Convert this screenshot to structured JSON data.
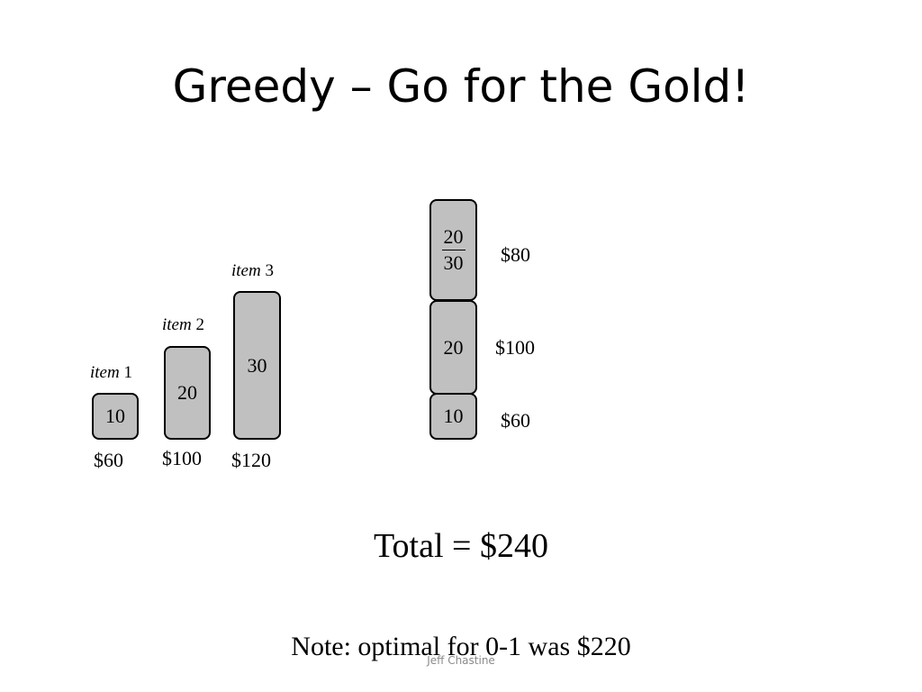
{
  "slide": {
    "title": "Greedy – Go for the Gold!",
    "total": "Total = $240",
    "note": "Note: optimal for 0-1 was $220",
    "footer": "Jeff Chastine"
  },
  "items": [
    {
      "label_word": "item",
      "label_num": "1",
      "weight": "10",
      "price": "$60"
    },
    {
      "label_word": "item",
      "label_num": "2",
      "weight": "20",
      "price": "$100"
    },
    {
      "label_word": "item",
      "label_num": "3",
      "weight": "30",
      "price": "$120"
    }
  ],
  "knapsack": {
    "top": {
      "numerator": "20",
      "denominator": "30",
      "price": "$80"
    },
    "middle": {
      "weight": "20",
      "price": "$100"
    },
    "bottom": {
      "weight": "10",
      "price": "$60"
    }
  },
  "colors": {
    "box_fill": "#c0c0c0",
    "box_stroke": "#000000",
    "footer_text": "#8a8a8a"
  }
}
